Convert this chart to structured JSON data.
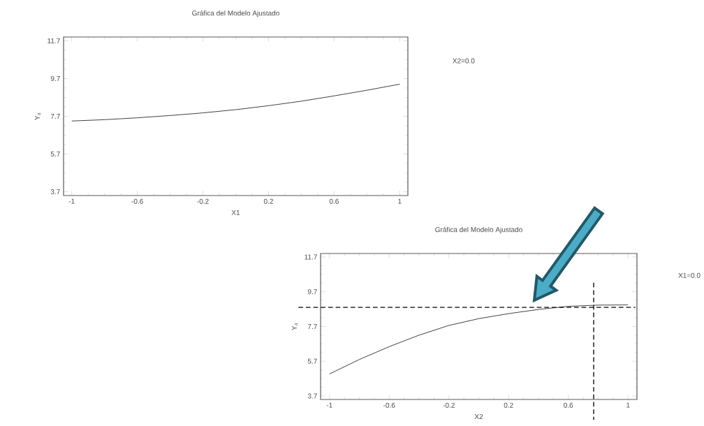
{
  "chart_data": [
    {
      "type": "line",
      "title": "Gráfica del Modelo Ajustado",
      "xlabel": "X1",
      "ylabel": "Y$_{4}$",
      "x": [
        -1,
        -0.8,
        -0.6,
        -0.4,
        -0.2,
        0,
        0.2,
        0.4,
        0.6,
        0.8,
        1
      ],
      "series": [
        {
          "color": "#333333",
          "values": [
            7.45,
            7.52,
            7.62,
            7.74,
            7.88,
            8.05,
            8.26,
            8.5,
            8.78,
            9.08,
            9.4
          ]
        }
      ],
      "xlim": [
        -1.05,
        1.05
      ],
      "ylim": [
        3.5,
        11.9
      ],
      "xticks": [
        -1,
        -0.6,
        -0.2,
        0.2,
        0.6,
        1
      ],
      "yticks": [
        3.7,
        5.7,
        7.7,
        9.7,
        11.7
      ],
      "annotations": [
        "X2=0.0"
      ]
    },
    {
      "type": "line",
      "title": "Gráfica del Modelo Ajustado",
      "xlabel": "X2",
      "ylabel": "Y$_{4}$",
      "x": [
        -1,
        -0.8,
        -0.6,
        -0.4,
        -0.2,
        0,
        0.2,
        0.4,
        0.6,
        0.8,
        1
      ],
      "series": [
        {
          "color": "#333333",
          "values": [
            4.97,
            5.8,
            6.54,
            7.2,
            7.76,
            8.15,
            8.44,
            8.68,
            8.86,
            8.93,
            8.94
          ]
        }
      ],
      "xlim": [
        -1.06,
        1.06
      ],
      "ylim": [
        3.5,
        11.9
      ],
      "xticks": [
        -1,
        -0.6,
        -0.2,
        0.2,
        0.6,
        1
      ],
      "yticks": [
        3.7,
        5.7,
        7.7,
        9.7,
        11.7
      ],
      "annotations": [
        "X1=0.0"
      ],
      "ref_lines": [
        {
          "axis": "y",
          "value": 8.8,
          "color": "#000000",
          "line_style": "dashed"
        },
        {
          "axis": "x",
          "value": 0.77,
          "color": "#000000",
          "line_style": "dashed"
        }
      ]
    }
  ]
}
